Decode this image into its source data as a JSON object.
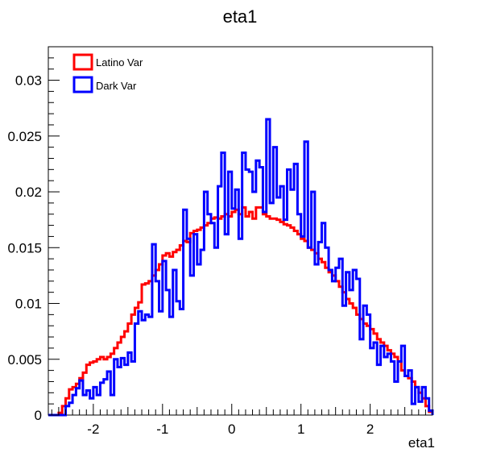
{
  "chart_data": {
    "type": "histogram",
    "title": "eta1",
    "xlabel": "eta1",
    "ylabel": "",
    "xlim": [
      -2.65,
      2.9
    ],
    "ylim": [
      0,
      0.033
    ],
    "bin_width": 0.05,
    "x_start": -2.65,
    "x_ticks": [
      -2,
      -1,
      0,
      1,
      2
    ],
    "x_tick_labels": [
      "-2",
      "-1",
      "0",
      "1",
      "2"
    ],
    "y_ticks": [
      0,
      0.005,
      0.01,
      0.015,
      0.02,
      0.025,
      0.03
    ],
    "y_tick_labels": [
      "0",
      "0.005",
      "0.01",
      "0.015",
      "0.02",
      "0.025",
      "0.03"
    ],
    "grid": false,
    "legend_position": "top-left",
    "series": [
      {
        "name": "Latino Var",
        "color": "#ff0000",
        "values": [
          0,
          0,
          0,
          0.0002,
          0.0008,
          0.0015,
          0.0023,
          0.0025,
          0.0028,
          0.0033,
          0.0038,
          0.0045,
          0.0047,
          0.0048,
          0.005,
          0.0052,
          0.005,
          0.0052,
          0.0055,
          0.006,
          0.0065,
          0.007,
          0.0075,
          0.0082,
          0.009,
          0.0096,
          0.0101,
          0.0117,
          0.0118,
          0.012,
          0.0125,
          0.013,
          0.0135,
          0.0143,
          0.0145,
          0.0142,
          0.0146,
          0.0148,
          0.0152,
          0.0156,
          0.0155,
          0.0163,
          0.0165,
          0.0166,
          0.0168,
          0.017,
          0.0172,
          0.0176,
          0.0177,
          0.0176,
          0.0178,
          0.018,
          0.0178,
          0.0182,
          0.0184,
          0.018,
          0.0186,
          0.0178,
          0.0182,
          0.0176,
          0.0186,
          0.0186,
          0.018,
          0.0178,
          0.0176,
          0.0176,
          0.0175,
          0.0173,
          0.0171,
          0.017,
          0.0168,
          0.0165,
          0.0162,
          0.0158,
          0.0156,
          0.015,
          0.0148,
          0.0145,
          0.014,
          0.0137,
          0.0132,
          0.0128,
          0.0125,
          0.012,
          0.0115,
          0.011,
          0.0104,
          0.01,
          0.0096,
          0.009,
          0.0086,
          0.0082,
          0.008,
          0.0077,
          0.0073,
          0.0068,
          0.0065,
          0.0062,
          0.0058,
          0.0055,
          0.0052,
          0.0048,
          0.004,
          0.0035,
          0.0033,
          0.003,
          0.0025,
          0.002,
          0.0015,
          0.0008,
          0.0003
        ]
      },
      {
        "name": "Dark Var",
        "color": "#0000ff",
        "values": [
          0,
          0,
          0,
          0,
          0,
          0.0008,
          0.0011,
          0.0018,
          0.0024,
          0.0031,
          0.0018,
          0.0022,
          0.0015,
          0.0025,
          0.0018,
          0.0029,
          0.0032,
          0.0039,
          0.0018,
          0.005,
          0.0043,
          0.0051,
          0.0045,
          0.0056,
          0.0048,
          0.0082,
          0.0093,
          0.0085,
          0.009,
          0.0088,
          0.0153,
          0.012,
          0.0093,
          0.0138,
          0.0112,
          0.0088,
          0.013,
          0.0102,
          0.0095,
          0.0184,
          0.0158,
          0.0125,
          0.0162,
          0.0135,
          0.0148,
          0.02,
          0.018,
          0.0172,
          0.015,
          0.0205,
          0.0235,
          0.0162,
          0.0218,
          0.0185,
          0.0202,
          0.0158,
          0.0235,
          0.022,
          0.0218,
          0.02,
          0.0228,
          0.0222,
          0.0182,
          0.0265,
          0.019,
          0.024,
          0.0195,
          0.0205,
          0.0175,
          0.022,
          0.0202,
          0.0225,
          0.018,
          0.016,
          0.0245,
          0.015,
          0.02,
          0.0135,
          0.0155,
          0.0172,
          0.015,
          0.013,
          0.012,
          0.0132,
          0.014,
          0.0098,
          0.0128,
          0.0112,
          0.013,
          0.0122,
          0.0068,
          0.0098,
          0.009,
          0.006,
          0.0065,
          0.0045,
          0.0062,
          0.0052,
          0.0055,
          0.0048,
          0.003,
          0.0048,
          0.0062,
          0.0035,
          0.004,
          0.001,
          0.0025,
          0.0012,
          0.0025,
          0.0015,
          0.0004
        ]
      }
    ]
  }
}
